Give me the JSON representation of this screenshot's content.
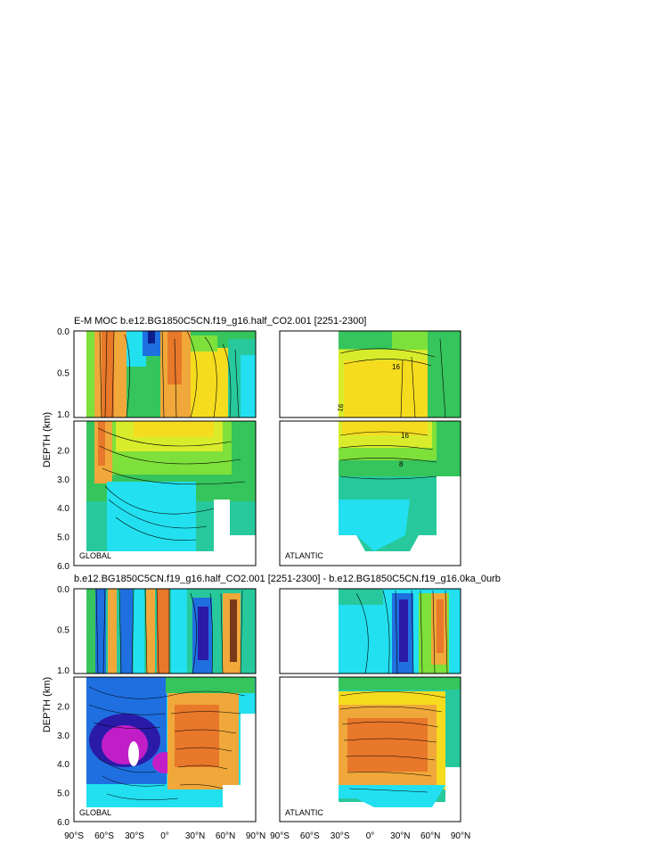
{
  "figure": {
    "title_top": "E-M MOC  b.e12.BG1850C5CN.f19_g16.half_CO2.001 [2251-2300]",
    "title_bottom": "b.e12.BG1850C5CN.f19_g16.half_CO2.001 [2251-2300] - b.e12.BG1850C5CN.f19_g16.0ka_0urb",
    "ylabel": "DEPTH (km)",
    "basin_global": "GLOBAL",
    "basin_atlantic": "ATLANTIC"
  },
  "chart_data": [
    {
      "type": "heatmap",
      "title": "E-M MOC  b.e12.BG1850C5CN.f19_g16.half_CO2.001 [2251-2300]",
      "ylabel": "DEPTH (km)",
      "panels": [
        "GLOBAL",
        "ATLANTIC"
      ],
      "x_ticks": [
        "90°S",
        "60°S",
        "30°S",
        "0°",
        "30°N",
        "60°N",
        "90°N"
      ],
      "y_ticks_upper": [
        "0.0",
        "0.5",
        "1.0"
      ],
      "y_ticks_lower": [
        "2.0",
        "3.0",
        "4.0",
        "5.0",
        "6.0"
      ],
      "ylim_km": [
        0,
        6
      ],
      "contour_labels": [
        "16",
        "16",
        "16",
        "8"
      ],
      "colors": [
        "#0b1e8c",
        "#1f6fe0",
        "#22e0f0",
        "#27c99c",
        "#36c45c",
        "#7ee03a",
        "#d8ec2c",
        "#f5dc1f",
        "#f0a83a",
        "#e8782a",
        "#7a3a1a"
      ]
    },
    {
      "type": "heatmap",
      "title": "b.e12.BG1850C5CN.f19_g16.half_CO2.001 [2251-2300] - b.e12.BG1850C5CN.f19_g16.0ka_0urb",
      "ylabel": "DEPTH (km)",
      "panels": [
        "GLOBAL",
        "ATLANTIC"
      ],
      "x_ticks": [
        "90°S",
        "60°S",
        "30°S",
        "0°",
        "30°N",
        "60°N",
        "90°N"
      ],
      "y_ticks_upper": [
        "0.0",
        "0.5",
        "1.0"
      ],
      "y_ticks_lower": [
        "2.0",
        "3.0",
        "4.0",
        "5.0",
        "6.0"
      ],
      "ylim_km": [
        0,
        6
      ],
      "colors": [
        "#c21ec8",
        "#2a1aa8",
        "#1f6fe0",
        "#22e0f0",
        "#36c45c",
        "#f5dc1f",
        "#f0a83a",
        "#e8782a"
      ]
    }
  ]
}
